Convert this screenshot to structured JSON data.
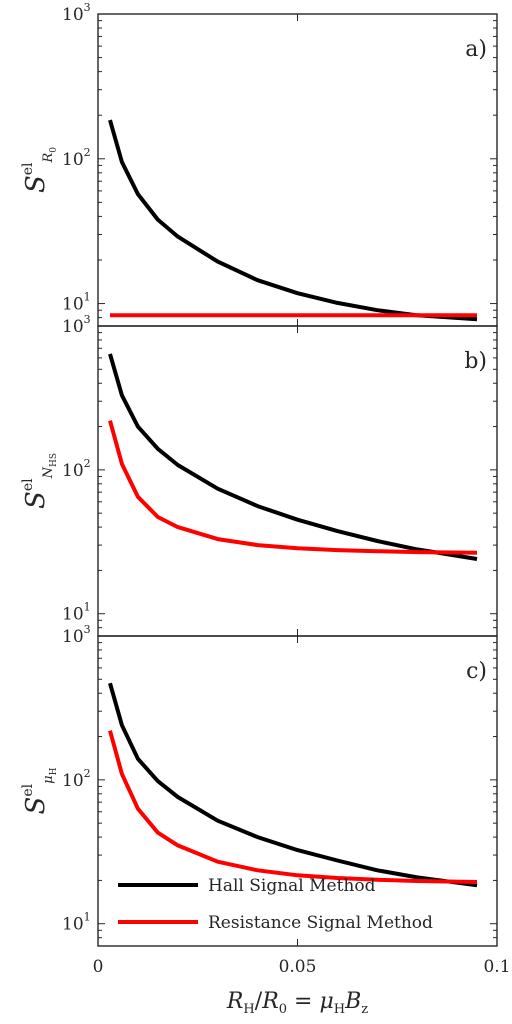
{
  "chart_data": [
    {
      "type": "line",
      "panel_label": "a)",
      "ylabel": {
        "base": "S",
        "sup": "el",
        "sub": "R",
        "subsub": "0"
      },
      "yscale": "log",
      "xlim": [
        0,
        0.1
      ],
      "ylim": [
        7,
        1000
      ],
      "yticks": [
        {
          "value": 10,
          "label": "10",
          "exp": "1"
        },
        {
          "value": 100,
          "label": "10",
          "exp": "2"
        },
        {
          "value": 1000,
          "label": "10",
          "exp": "3"
        }
      ],
      "series": [
        {
          "color": "#000000",
          "x": [
            0.003,
            0.006,
            0.01,
            0.015,
            0.02,
            0.03,
            0.04,
            0.05,
            0.06,
            0.07,
            0.08,
            0.095
          ],
          "y": [
            185,
            95,
            57,
            38,
            29,
            19.5,
            14.5,
            11.8,
            10.1,
            9.0,
            8.3,
            7.8
          ]
        },
        {
          "color": "#ff0000",
          "x": [
            0.003,
            0.095
          ],
          "y": [
            8.3,
            8.3
          ]
        }
      ]
    },
    {
      "type": "line",
      "panel_label": "b)",
      "ylabel": {
        "base": "S",
        "sup": "el",
        "sub": "N",
        "subsub": "HS"
      },
      "yscale": "log",
      "xlim": [
        0,
        0.1
      ],
      "ylim": [
        7,
        1000
      ],
      "yticks": [
        {
          "value": 10,
          "label": "10",
          "exp": "1"
        },
        {
          "value": 100,
          "label": "10",
          "exp": "2"
        },
        {
          "value": 1000,
          "label": "10",
          "exp": "3"
        }
      ],
      "series": [
        {
          "color": "#000000",
          "x": [
            0.003,
            0.006,
            0.01,
            0.015,
            0.02,
            0.03,
            0.04,
            0.05,
            0.06,
            0.07,
            0.08,
            0.095
          ],
          "y": [
            640,
            330,
            200,
            140,
            108,
            74,
            56,
            45,
            37.5,
            32,
            28,
            24
          ]
        },
        {
          "color": "#ff0000",
          "x": [
            0.003,
            0.006,
            0.01,
            0.015,
            0.02,
            0.03,
            0.04,
            0.05,
            0.06,
            0.07,
            0.08,
            0.095
          ],
          "y": [
            220,
            110,
            65,
            47,
            40,
            33,
            30,
            28.5,
            27.7,
            27.2,
            26.8,
            26.5
          ]
        }
      ]
    },
    {
      "type": "line",
      "panel_label": "c)",
      "ylabel": {
        "base": "S",
        "sup": "el",
        "sub": "μ",
        "subsub": "H"
      },
      "yscale": "log",
      "xlim": [
        0,
        0.1
      ],
      "ylim": [
        7,
        1000
      ],
      "xticks": [
        0,
        0.05,
        0.1
      ],
      "xticklabels": [
        "0",
        "0.05",
        "0.1"
      ],
      "xlabel": {
        "p1": "R",
        "s1": "H",
        "p2": "/",
        "p3": "R",
        "s3": "0",
        "p4": " = ",
        "p5": "μ",
        "s5": "H",
        "p6": "B",
        "s6": "z"
      },
      "yticks": [
        {
          "value": 10,
          "label": "10",
          "exp": "1"
        },
        {
          "value": 100,
          "label": "10",
          "exp": "2"
        },
        {
          "value": 1000,
          "label": "10",
          "exp": "3"
        }
      ],
      "series": [
        {
          "name": "Hall Signal Method",
          "color": "#000000",
          "x": [
            0.003,
            0.006,
            0.01,
            0.015,
            0.02,
            0.03,
            0.04,
            0.05,
            0.06,
            0.07,
            0.08,
            0.095
          ],
          "y": [
            470,
            240,
            140,
            98,
            76,
            52,
            40,
            32.5,
            27.5,
            23.5,
            21,
            18.5
          ]
        },
        {
          "name": "Resistance Signal Method",
          "color": "#ff0000",
          "x": [
            0.003,
            0.006,
            0.01,
            0.015,
            0.02,
            0.03,
            0.04,
            0.05,
            0.06,
            0.07,
            0.08,
            0.095
          ],
          "y": [
            220,
            110,
            63,
            43,
            35,
            27,
            23.5,
            21.7,
            20.8,
            20.2,
            19.8,
            19.5
          ]
        }
      ],
      "legend_location": "bottom"
    }
  ]
}
